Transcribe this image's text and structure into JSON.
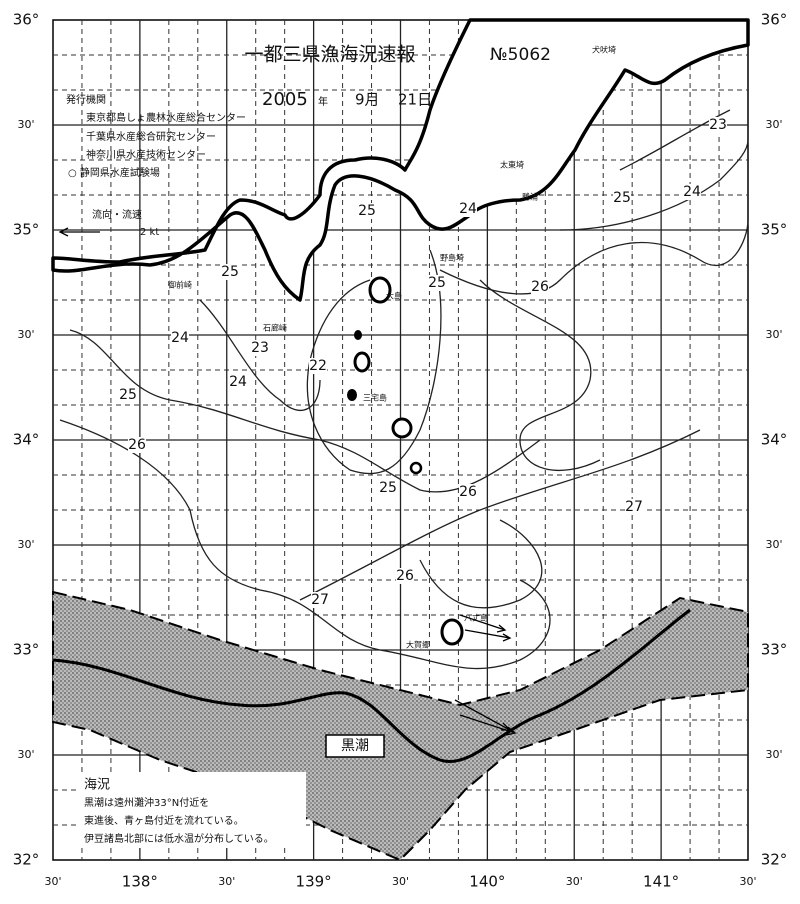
{
  "title": "一都三県漁海況速報",
  "issue_no": "№5062",
  "date": {
    "year": "2005",
    "year_unit": "年",
    "month": "9月",
    "day": "21日"
  },
  "publishers": {
    "heading": "発行機関",
    "items": [
      "東京都島しょ農林水産総合センター",
      "千葉県水産総合研究センター",
      "神奈川県水産技術センター",
      "○ 静岡県水産試験場"
    ]
  },
  "current_legend": {
    "title": "流向・流速",
    "scale": "2 kt"
  },
  "lat_labels": [
    "36°",
    "30'",
    "35°",
    "30'",
    "34°",
    "30'",
    "33°",
    "30'",
    "32°"
  ],
  "lon_labels": [
    "30'",
    "138°",
    "30'",
    "139°",
    "30'",
    "140°",
    "30'",
    "141°",
    "30'"
  ],
  "isotherm_labels": [
    23,
    24,
    25,
    26,
    24,
    25,
    25,
    25,
    24,
    23,
    24,
    25,
    22,
    26,
    25,
    26,
    27,
    26,
    27
  ],
  "places": [
    "犬吠埼",
    "太東埼",
    "勝浦",
    "野島埼",
    "大島",
    "三宅島",
    "八丈島",
    "大賀郷",
    "石廊崎",
    "御前崎"
  ],
  "kuroshio_label": "黒潮",
  "notes": {
    "heading": "海況",
    "lines": [
      "黒潮は遠州灘沖33°N付近を",
      "東進後、青ヶ島付近を流れている。",
      "伊豆諸島北部には低水温が分布している。"
    ]
  }
}
